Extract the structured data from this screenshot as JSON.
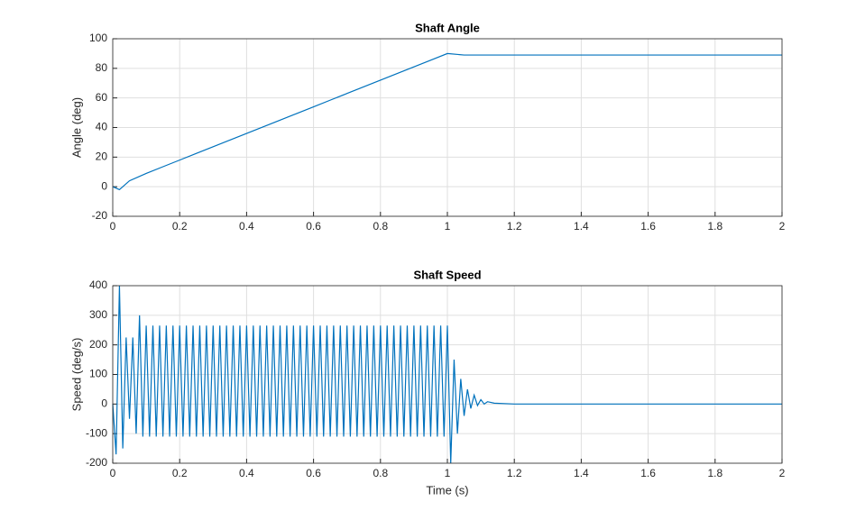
{
  "chart_data": [
    {
      "type": "line",
      "title": "Shaft Angle",
      "ylabel": "Angle (deg)",
      "x": [
        0,
        0.02,
        0.05,
        0.1,
        0.15,
        0.2,
        0.25,
        0.3,
        0.35,
        0.4,
        0.45,
        0.5,
        0.55,
        0.6,
        0.65,
        0.7,
        0.75,
        0.8,
        0.85,
        0.9,
        0.95,
        1,
        1.05,
        2
      ],
      "values": [
        0,
        -2,
        4,
        9,
        13.5,
        18,
        22.5,
        27,
        31.5,
        36,
        40.5,
        45,
        49.5,
        54,
        58.5,
        63,
        67.5,
        72,
        76.5,
        81,
        85.5,
        90,
        89,
        89
      ],
      "color": "#0072bd",
      "xlim": [
        0,
        2
      ],
      "ylim": [
        -20,
        100
      ],
      "xticks": [
        0,
        0.2,
        0.4,
        0.6,
        0.8,
        1,
        1.2,
        1.4,
        1.6,
        1.8,
        2
      ],
      "yticks": [
        -20,
        0,
        20,
        40,
        60,
        80,
        100
      ],
      "grid": true
    },
    {
      "type": "line",
      "title": "Shaft Speed",
      "ylabel": "Speed (deg/s)",
      "xlabel": "Time (s)",
      "x": [
        0,
        0.01,
        0.02,
        0.03,
        0.04,
        0.05,
        0.06,
        0.07,
        0.08,
        0.09,
        0.1,
        0.11,
        0.12,
        0.13,
        0.14,
        0.15,
        0.16,
        0.17,
        0.18,
        0.19,
        0.2,
        0.21,
        0.22,
        0.23,
        0.24,
        0.25,
        0.26,
        0.27,
        0.28,
        0.29,
        0.3,
        0.31,
        0.32,
        0.33,
        0.34,
        0.35,
        0.36,
        0.37,
        0.38,
        0.39,
        0.4,
        0.41,
        0.42,
        0.43,
        0.44,
        0.45,
        0.46,
        0.47,
        0.48,
        0.49,
        0.5,
        0.51,
        0.52,
        0.53,
        0.54,
        0.55,
        0.56,
        0.57,
        0.58,
        0.59,
        0.6,
        0.61,
        0.62,
        0.63,
        0.64,
        0.65,
        0.66,
        0.67,
        0.68,
        0.69,
        0.7,
        0.71,
        0.72,
        0.73,
        0.74,
        0.75,
        0.76,
        0.77,
        0.78,
        0.79,
        0.8,
        0.81,
        0.82,
        0.83,
        0.84,
        0.85,
        0.86,
        0.87,
        0.88,
        0.89,
        0.9,
        0.91,
        0.92,
        0.93,
        0.94,
        0.95,
        0.96,
        0.97,
        0.98,
        0.99,
        1,
        1.01,
        1.02,
        1.03,
        1.04,
        1.05,
        1.06,
        1.07,
        1.08,
        1.09,
        1.1,
        1.11,
        1.12,
        1.14,
        1.2,
        2
      ],
      "values": [
        0,
        -170,
        400,
        -150,
        225,
        -50,
        225,
        -100,
        300,
        -110,
        265,
        -110,
        265,
        -110,
        265,
        -110,
        265,
        -110,
        265,
        -110,
        265,
        -110,
        265,
        -110,
        265,
        -110,
        265,
        -110,
        265,
        -110,
        265,
        -110,
        265,
        -110,
        265,
        -110,
        265,
        -110,
        265,
        -110,
        265,
        -110,
        265,
        -110,
        265,
        -110,
        265,
        -110,
        265,
        -110,
        265,
        -110,
        265,
        -110,
        265,
        -110,
        265,
        -110,
        265,
        -110,
        265,
        -110,
        265,
        -110,
        265,
        -110,
        265,
        -110,
        265,
        -110,
        265,
        -110,
        265,
        -110,
        265,
        -110,
        265,
        -110,
        265,
        -110,
        265,
        -110,
        265,
        -110,
        265,
        -110,
        265,
        -110,
        265,
        -110,
        265,
        -110,
        265,
        -110,
        265,
        -110,
        265,
        -110,
        265,
        -110,
        265,
        -200,
        150,
        -100,
        85,
        -40,
        50,
        -15,
        30,
        -5,
        15,
        0,
        8,
        3,
        0,
        0
      ],
      "color": "#0072bd",
      "xlim": [
        0,
        2
      ],
      "ylim": [
        -200,
        400
      ],
      "xticks": [
        0,
        0.2,
        0.4,
        0.6,
        0.8,
        1,
        1.2,
        1.4,
        1.6,
        1.8,
        2
      ],
      "yticks": [
        -200,
        -100,
        0,
        100,
        200,
        300,
        400
      ],
      "grid": true
    }
  ]
}
